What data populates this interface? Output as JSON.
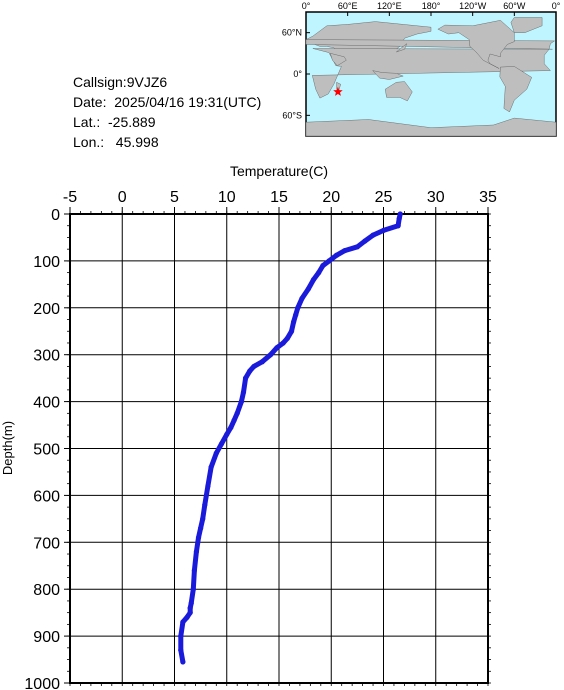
{
  "info": {
    "callsign": "Callsign:9VJZ6",
    "date": "Date:  2025/04/16 19:31(UTC)",
    "lat": "Lat.:  -25.889",
    "lon": "Lon.:   45.998"
  },
  "map": {
    "top_labels": [
      "0°",
      "60°E",
      "120°E",
      "180°",
      "120°W",
      "60°W",
      "0°"
    ],
    "left_labels": [
      "60°N",
      "0°",
      "60°S"
    ],
    "station": {
      "lat": -25.889,
      "lon": 45.998
    },
    "ocean_color": "#bff5ff",
    "land_color": "#bebebe",
    "marker_color": "#ff0000"
  },
  "chart_data": {
    "type": "line",
    "title": "",
    "xlabel": "Temperature(C)",
    "ylabel": "Depth(m)",
    "xlim": [
      -5,
      35
    ],
    "ylim": [
      1000,
      0
    ],
    "xticks": [
      "-5",
      "0",
      "5",
      "10",
      "15",
      "20",
      "25",
      "30",
      "35"
    ],
    "yticks": [
      "0",
      "100",
      "200",
      "300",
      "400",
      "500",
      "600",
      "700",
      "800",
      "900",
      "1000"
    ],
    "grid": true,
    "series": [
      {
        "color": "#1a1adb",
        "x": [
          26.6,
          26.5,
          26.4,
          25.0,
          24.0,
          23.2,
          22.5,
          21.3,
          20.5,
          19.8,
          19.2,
          18.8,
          18.3,
          17.8,
          17.2,
          16.8,
          16.6,
          16.4,
          16.2,
          15.8,
          15.4,
          14.8,
          14.2,
          13.4,
          12.6,
          12.2,
          11.8,
          11.6,
          11.4,
          11.0,
          10.7,
          10.4,
          10.0,
          9.5,
          9.0,
          8.5,
          8.2,
          7.9,
          7.7,
          7.5,
          7.3,
          7.1,
          6.9,
          6.8,
          6.6,
          6.5,
          6.5,
          6.2,
          5.8,
          5.6,
          5.6,
          5.8
        ],
        "y": [
          0,
          10,
          25,
          35,
          45,
          58,
          70,
          78,
          88,
          100,
          110,
          125,
          140,
          160,
          180,
          200,
          215,
          230,
          250,
          265,
          275,
          285,
          300,
          315,
          325,
          335,
          350,
          380,
          400,
          425,
          440,
          455,
          470,
          490,
          510,
          540,
          580,
          620,
          650,
          670,
          690,
          720,
          760,
          800,
          830,
          840,
          850,
          860,
          870,
          900,
          930,
          955
        ]
      }
    ]
  }
}
